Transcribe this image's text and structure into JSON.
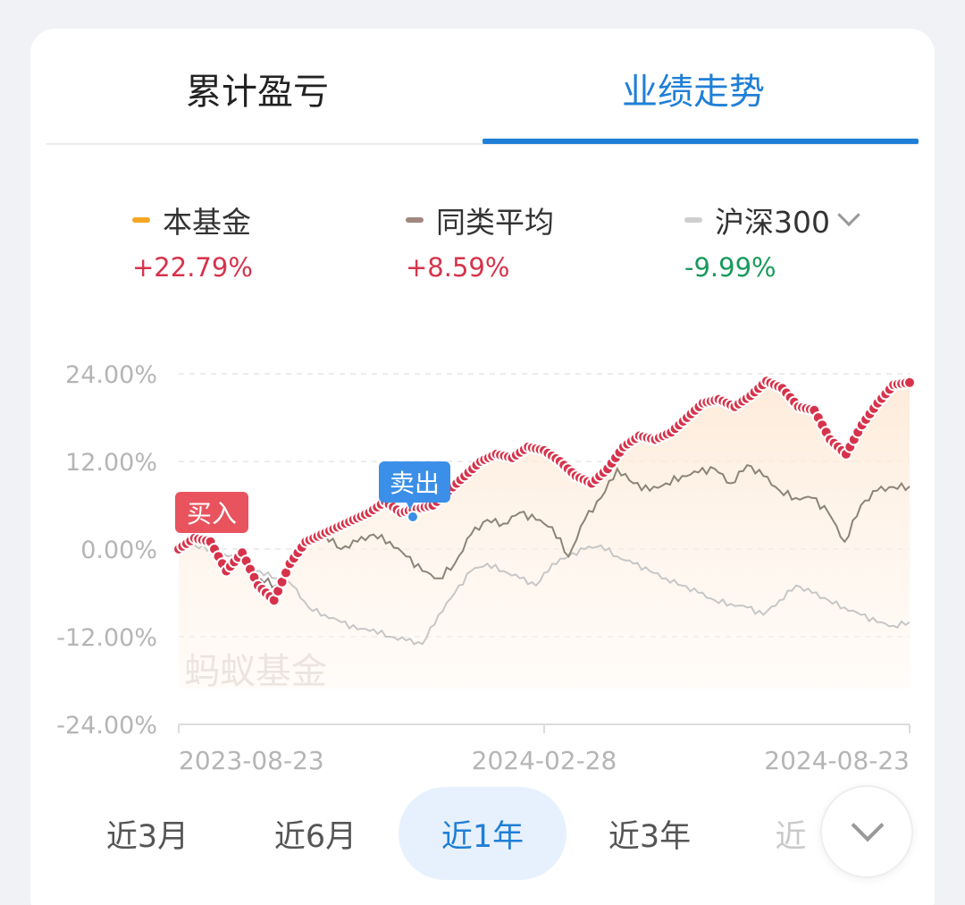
{
  "tabs": [
    {
      "label": "累计盈亏",
      "active": false
    },
    {
      "label": "业绩走势",
      "active": true
    }
  ],
  "legend": [
    {
      "name": "本基金",
      "value": "+22.79%",
      "color": "#f5a623",
      "value_color": "#d6334b"
    },
    {
      "name": "同类平均",
      "value": "+8.59%",
      "color": "#a1887f",
      "value_color": "#d6334b"
    },
    {
      "name": "沪深300",
      "value": "-9.99%",
      "color": "#cfcfcf",
      "value_color": "#1a9a5b",
      "has_dropdown": true
    }
  ],
  "watermark": "蚂蚁基金",
  "markers": {
    "buy": "买入",
    "sell": "卖出"
  },
  "ranges": [
    {
      "label": "近3月",
      "active": false
    },
    {
      "label": "近6月",
      "active": false
    },
    {
      "label": "近1年",
      "active": true
    },
    {
      "label": "近3年",
      "active": false
    },
    {
      "label": "近",
      "active": false,
      "faded": true
    }
  ],
  "colors": {
    "accent": "#1f7fd6",
    "fund_line": "#d6334b",
    "peer_line": "#8d8478",
    "index_line": "#c7c7c7",
    "buy_tag": "#e8535e",
    "sell_tag": "#3b8fe8"
  },
  "chart_data": {
    "type": "line",
    "ylim": [
      -24,
      24
    ],
    "yticks": [
      "24.00%",
      "12.00%",
      "0.00%",
      "-12.00%",
      "-24.00%"
    ],
    "xticks": [
      "2023-08-23",
      "2024-02-28",
      "2024-08-23"
    ],
    "series": [
      {
        "name": "本基金",
        "values": [
          0,
          1.5,
          1,
          -3,
          -0.5,
          -5,
          -7,
          -2,
          1,
          2,
          3,
          4,
          5,
          6.5,
          5,
          5.5,
          6,
          8,
          10,
          12,
          13,
          12.5,
          14,
          13.5,
          12,
          10,
          9,
          11,
          14,
          15.5,
          15,
          16,
          18,
          20,
          20.5,
          19.5,
          21,
          23,
          22,
          19.5,
          19,
          15,
          13,
          17,
          20,
          22.5,
          22.8
        ]
      },
      {
        "name": "同类平均",
        "values": [
          0,
          1,
          1,
          -2,
          -1,
          -4,
          -5,
          -1,
          1,
          2,
          0,
          1,
          2,
          1,
          -1,
          -3,
          -4,
          -2,
          2,
          4,
          3.5,
          5,
          4,
          3,
          -1,
          4,
          7,
          11,
          9,
          8,
          9,
          10,
          10.5,
          11,
          9,
          11.5,
          10,
          8,
          7,
          7,
          5,
          1,
          6,
          8,
          8.5,
          8.6
        ]
      },
      {
        "name": "沪深300",
        "values": [
          0,
          0.5,
          0,
          -1,
          -2,
          -3,
          -4,
          -5,
          -8,
          -9,
          -10,
          -11,
          -11,
          -12,
          -12.5,
          -13,
          -9,
          -6,
          -3,
          -2,
          -3,
          -4,
          -5,
          -2,
          -1,
          0,
          0.5,
          -1,
          -2,
          -3,
          -4,
          -5,
          -6,
          -7,
          -7.5,
          -8,
          -9,
          -7,
          -5,
          -6,
          -7,
          -8,
          -9,
          -10,
          -10.5,
          -10
        ]
      }
    ]
  }
}
